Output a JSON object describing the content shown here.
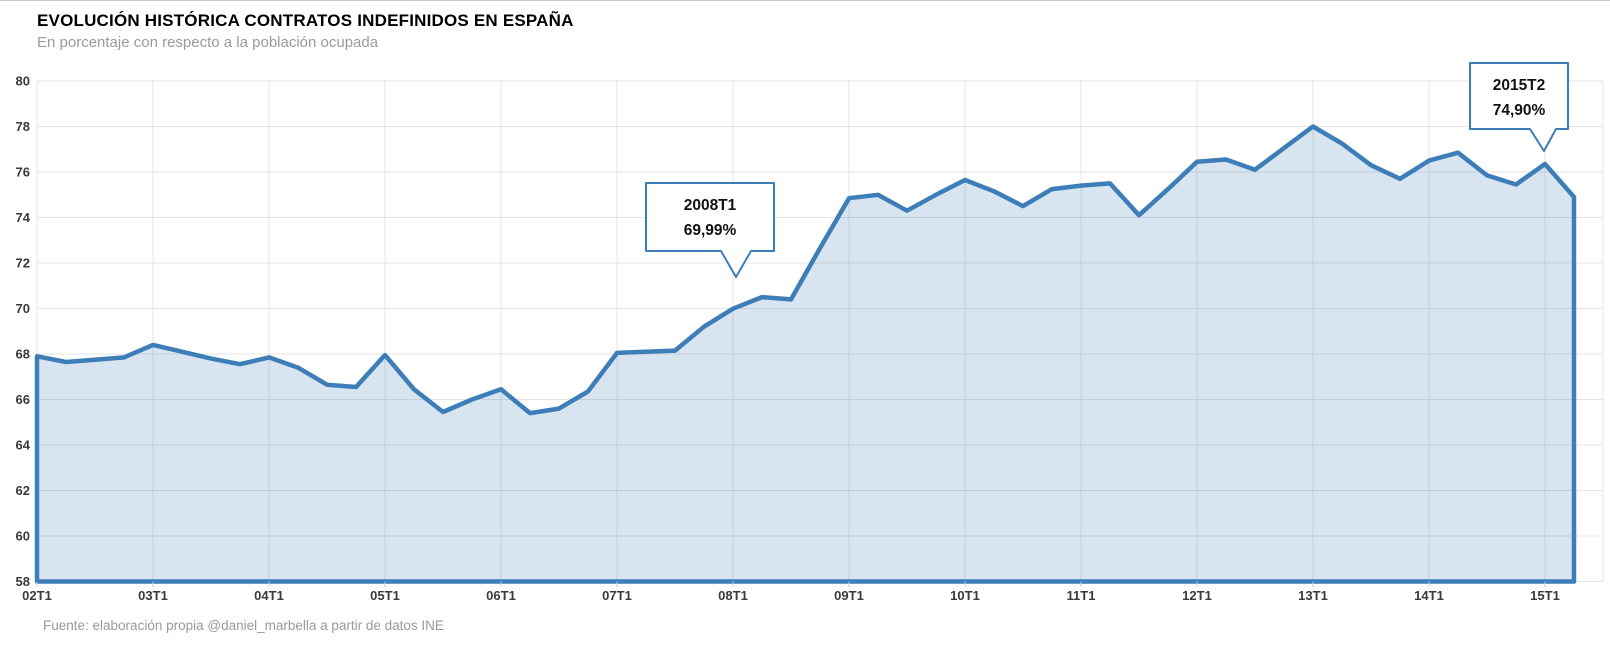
{
  "header": {
    "title": "EVOLUCIÓN HISTÓRICA CONTRATOS INDEFINIDOS EN ESPAÑA",
    "subtitle": "En porcentaje con respecto a la población ocupada"
  },
  "footer": {
    "source": "Fuente: elaboración propia @daniel_marbella a partir de datos INE"
  },
  "chart_data": {
    "type": "area",
    "title": "EVOLUCIÓN HISTÓRICA CONTRATOS INDEFINIDOS EN ESPAÑA",
    "subtitle": "En porcentaje con respecto a la población ocupada",
    "xlabel": "",
    "ylabel": "",
    "ylim": [
      58,
      80
    ],
    "y_ticks": [
      58,
      60,
      62,
      64,
      66,
      68,
      70,
      72,
      74,
      76,
      78,
      80
    ],
    "x_tick_labels": [
      "02T1",
      "03T1",
      "04T1",
      "05T1",
      "06T1",
      "07T1",
      "08T1",
      "09T1",
      "10T1",
      "11T1",
      "12T1",
      "13T1",
      "14T1",
      "15T1"
    ],
    "grid": true,
    "legend": "none",
    "categories": [
      "02T1",
      "02T2",
      "02T3",
      "02T4",
      "03T1",
      "03T2",
      "03T3",
      "03T4",
      "04T1",
      "04T2",
      "04T3",
      "04T4",
      "05T1",
      "05T2",
      "05T3",
      "05T4",
      "06T1",
      "06T2",
      "06T3",
      "06T4",
      "07T1",
      "07T2",
      "07T3",
      "07T4",
      "08T1",
      "08T2",
      "08T3",
      "08T4",
      "09T1",
      "09T2",
      "09T3",
      "09T4",
      "10T1",
      "10T2",
      "10T3",
      "10T4",
      "11T1",
      "11T2",
      "11T3",
      "11T4",
      "12T1",
      "12T2",
      "12T3",
      "12T4",
      "13T1",
      "13T2",
      "13T3",
      "13T4",
      "14T1",
      "14T2",
      "14T3",
      "14T4",
      "15T1",
      "15T2"
    ],
    "values": [
      67.9,
      67.65,
      67.75,
      67.85,
      68.4,
      68.1,
      67.8,
      67.55,
      67.85,
      67.4,
      66.65,
      66.55,
      67.95,
      66.45,
      65.45,
      66.0,
      66.45,
      65.4,
      65.6,
      66.35,
      68.05,
      68.1,
      68.15,
      69.2,
      69.99,
      70.5,
      70.4,
      72.65,
      74.85,
      75.0,
      74.3,
      75.0,
      75.65,
      75.15,
      74.5,
      75.25,
      75.4,
      75.5,
      74.1,
      75.25,
      76.45,
      76.55,
      76.1,
      77.05,
      78.0,
      77.25,
      76.3,
      75.7,
      76.5,
      76.85,
      75.85,
      75.45,
      76.35,
      74.9
    ],
    "annotations": [
      {
        "index": 24,
        "quarter": "2008T1",
        "value_label": "69,99%"
      },
      {
        "index": 53,
        "quarter": "2015T2",
        "value_label": "74,90%"
      }
    ],
    "colors": {
      "line": "#3d7eb8",
      "fill": "rgba(61,126,184,0.20)",
      "grid": "#e4e4e4",
      "tick_mark": "#cccccc",
      "tick_text": "#3a3a3a",
      "callout_border": "#3d7eb8",
      "callout_bg": "#ffffff"
    }
  }
}
